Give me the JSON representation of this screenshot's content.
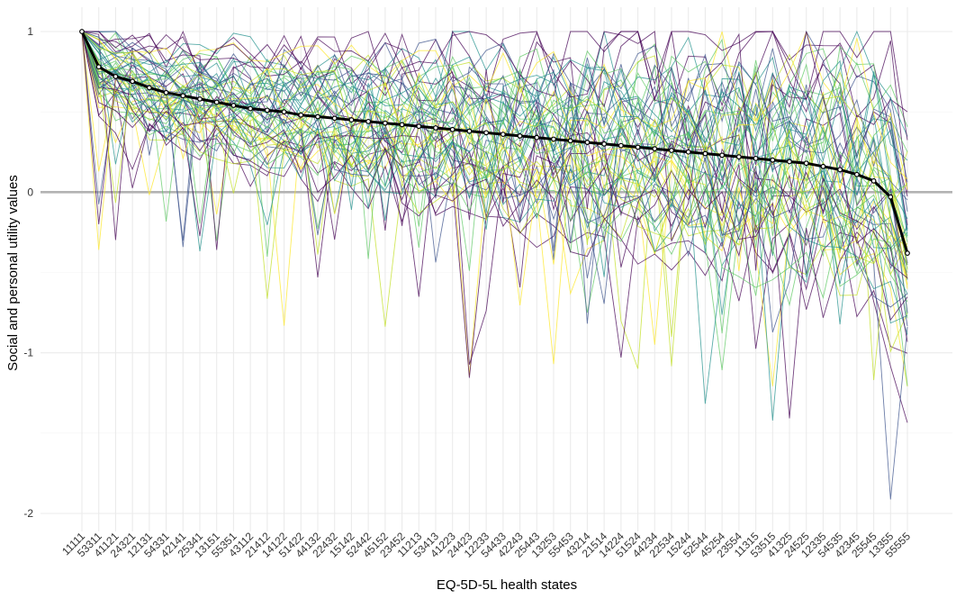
{
  "chart_data": {
    "type": "line",
    "title": "",
    "xlabel": "EQ-5D-5L health states",
    "ylabel": "Social and personal utility values",
    "ylim": [
      -2.1,
      1.1
    ],
    "y_ticks": [
      1,
      0,
      -1,
      -2
    ],
    "grid": true,
    "legend": "none",
    "reference_line": {
      "y": 0
    },
    "categories": [
      "11111",
      "53311",
      "41121",
      "24321",
      "12131",
      "54331",
      "42141",
      "25341",
      "13151",
      "55351",
      "43112",
      "21412",
      "14122",
      "51422",
      "44132",
      "22432",
      "15142",
      "52442",
      "45152",
      "23452",
      "11213",
      "53413",
      "41223",
      "24423",
      "12233",
      "54433",
      "42243",
      "25443",
      "13253",
      "55453",
      "43214",
      "21514",
      "14224",
      "51524",
      "44234",
      "22534",
      "15244",
      "52544",
      "45254",
      "23554",
      "11315",
      "53515",
      "41325",
      "24525",
      "12335",
      "54535",
      "42345",
      "25545",
      "13355",
      "55555"
    ],
    "mean_series": {
      "color": "#000000",
      "values": [
        1.0,
        0.78,
        0.72,
        0.69,
        0.65,
        0.62,
        0.6,
        0.58,
        0.56,
        0.54,
        0.52,
        0.51,
        0.5,
        0.48,
        0.47,
        0.46,
        0.45,
        0.44,
        0.43,
        0.42,
        0.41,
        0.4,
        0.39,
        0.38,
        0.37,
        0.36,
        0.35,
        0.34,
        0.33,
        0.32,
        0.31,
        0.3,
        0.29,
        0.28,
        0.27,
        0.26,
        0.25,
        0.24,
        0.23,
        0.22,
        0.21,
        0.2,
        0.19,
        0.18,
        0.16,
        0.14,
        0.11,
        0.07,
        -0.03,
        -0.38
      ]
    },
    "individual_series_count": 60,
    "individual_series_palette": [
      "#440154",
      "#3b528b",
      "#21908c",
      "#5dc863",
      "#c2df23",
      "#fde725"
    ],
    "individual_series_colors_note": "viridis",
    "individual_series_spread": 0.35
  }
}
